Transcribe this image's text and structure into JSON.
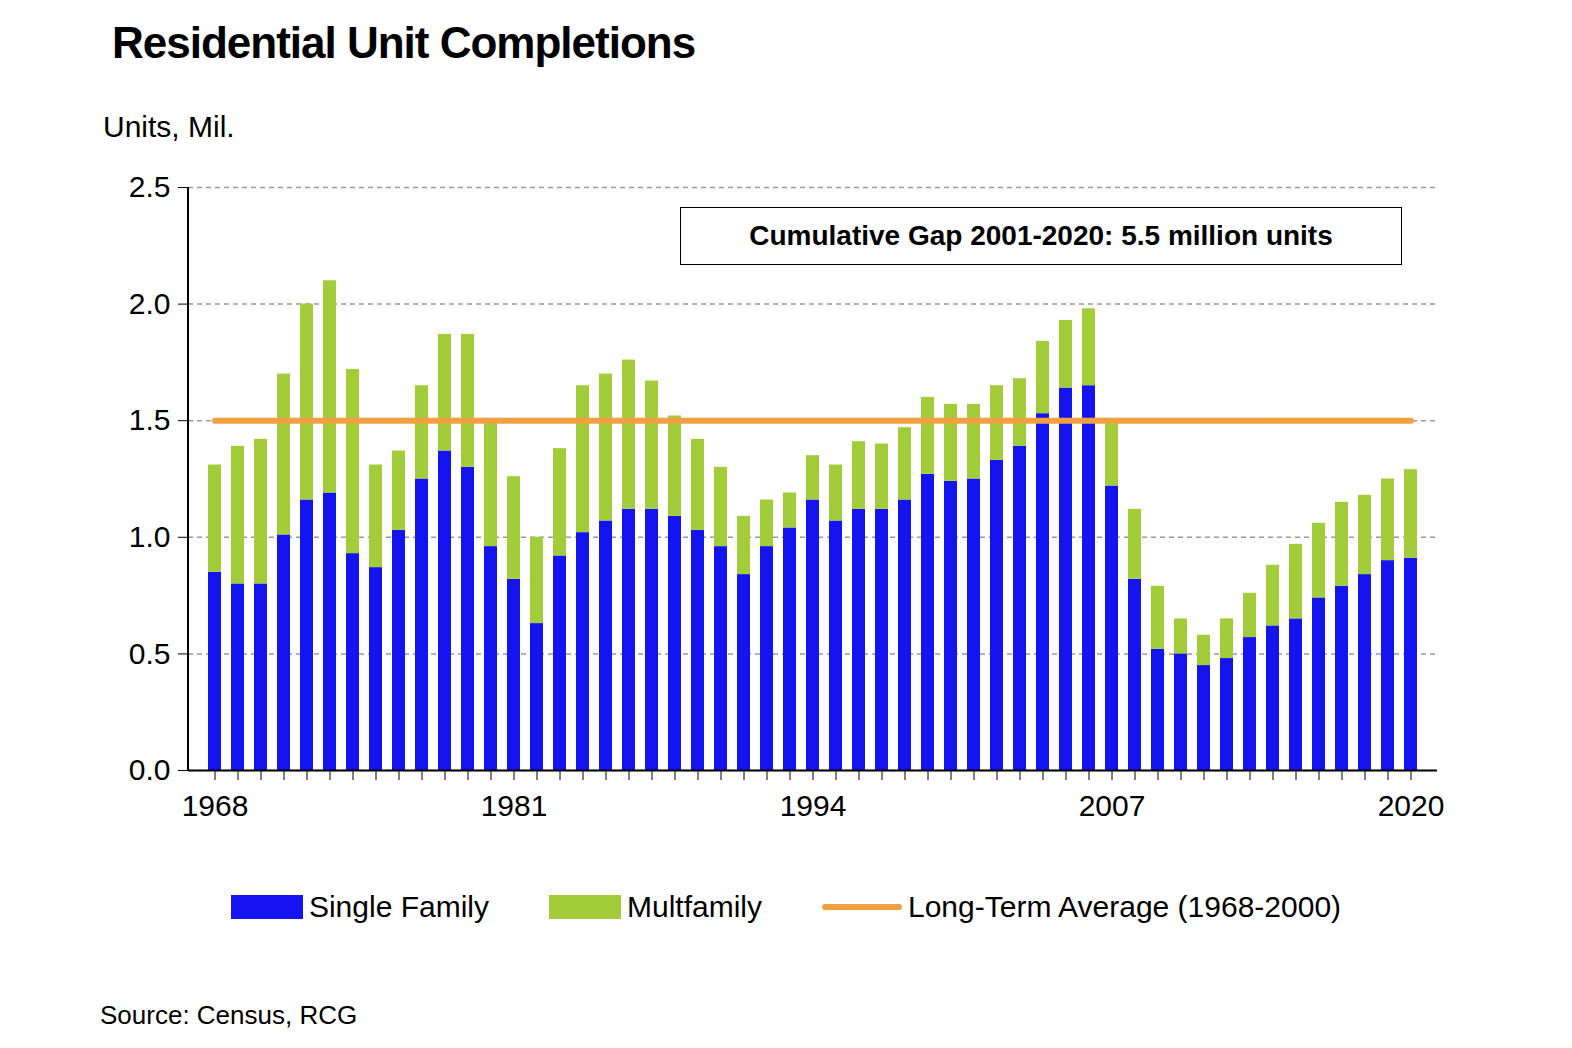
{
  "chart_data": {
    "type": "bar",
    "title": "Residential Unit Completions",
    "y_label": "Units, Mil.",
    "annotation": "Cumulative Gap 2001-2020: 5.5 million units",
    "source": "Source: Census, RCG",
    "stacked": true,
    "grid": true,
    "legend": "bottom",
    "categories": [
      "1968",
      null,
      null,
      null,
      null,
      null,
      null,
      null,
      null,
      null,
      null,
      null,
      null,
      "1981",
      null,
      null,
      null,
      null,
      null,
      null,
      null,
      null,
      null,
      null,
      null,
      null,
      "1994",
      null,
      null,
      null,
      null,
      null,
      null,
      null,
      null,
      null,
      null,
      null,
      null,
      "2007",
      null,
      null,
      null,
      null,
      null,
      null,
      null,
      null,
      null,
      null,
      null,
      null,
      "2020"
    ],
    "series": [
      {
        "name": "Single Family",
        "type": "bar",
        "color": "#1414f0",
        "values": [
          0.85,
          0.8,
          0.8,
          1.01,
          1.16,
          1.19,
          0.93,
          0.87,
          1.03,
          1.25,
          1.37,
          1.3,
          0.96,
          0.82,
          0.63,
          0.92,
          1.02,
          1.07,
          1.12,
          1.12,
          1.09,
          1.03,
          0.96,
          0.84,
          0.96,
          1.04,
          1.16,
          1.07,
          1.12,
          1.12,
          1.16,
          1.27,
          1.24,
          1.25,
          1.33,
          1.39,
          1.53,
          1.64,
          1.65,
          1.22,
          0.82,
          0.52,
          0.5,
          0.45,
          0.48,
          0.57,
          0.62,
          0.65,
          0.74,
          0.79,
          0.84,
          0.9,
          0.91
        ]
      },
      {
        "name": "Multfamily",
        "type": "bar",
        "color": "#a2cc3a",
        "values": [
          0.46,
          0.59,
          0.62,
          0.69,
          0.84,
          0.91,
          0.79,
          0.44,
          0.34,
          0.4,
          0.5,
          0.57,
          0.54,
          0.44,
          0.37,
          0.46,
          0.63,
          0.63,
          0.64,
          0.55,
          0.43,
          0.39,
          0.34,
          0.25,
          0.2,
          0.15,
          0.19,
          0.24,
          0.29,
          0.28,
          0.31,
          0.33,
          0.33,
          0.32,
          0.32,
          0.29,
          0.31,
          0.29,
          0.33,
          0.28,
          0.3,
          0.27,
          0.15,
          0.13,
          0.17,
          0.19,
          0.26,
          0.32,
          0.32,
          0.36,
          0.34,
          0.35,
          0.38
        ]
      },
      {
        "name": "Long-Term Average (1968-2000)",
        "type": "line",
        "color": "#f0a040",
        "values": [
          1.5,
          1.5,
          1.5,
          1.5,
          1.5,
          1.5,
          1.5,
          1.5,
          1.5,
          1.5,
          1.5,
          1.5,
          1.5,
          1.5,
          1.5,
          1.5,
          1.5,
          1.5,
          1.5,
          1.5,
          1.5,
          1.5,
          1.5,
          1.5,
          1.5,
          1.5,
          1.5,
          1.5,
          1.5,
          1.5,
          1.5,
          1.5,
          1.5,
          1.5,
          1.5,
          1.5,
          1.5,
          1.5,
          1.5,
          1.5,
          1.5,
          1.5,
          1.5,
          1.5,
          1.5,
          1.5,
          1.5,
          1.5,
          1.5,
          1.5,
          1.5,
          1.5,
          1.5
        ]
      }
    ],
    "ylim": [
      0,
      2.5
    ],
    "yticks": [
      {
        "value": 0,
        "label": "0.0"
      },
      0.5,
      {
        "value": 1,
        "label": "1.0"
      },
      1.5,
      {
        "value": 2,
        "label": "2.0"
      },
      2.5
    ]
  }
}
